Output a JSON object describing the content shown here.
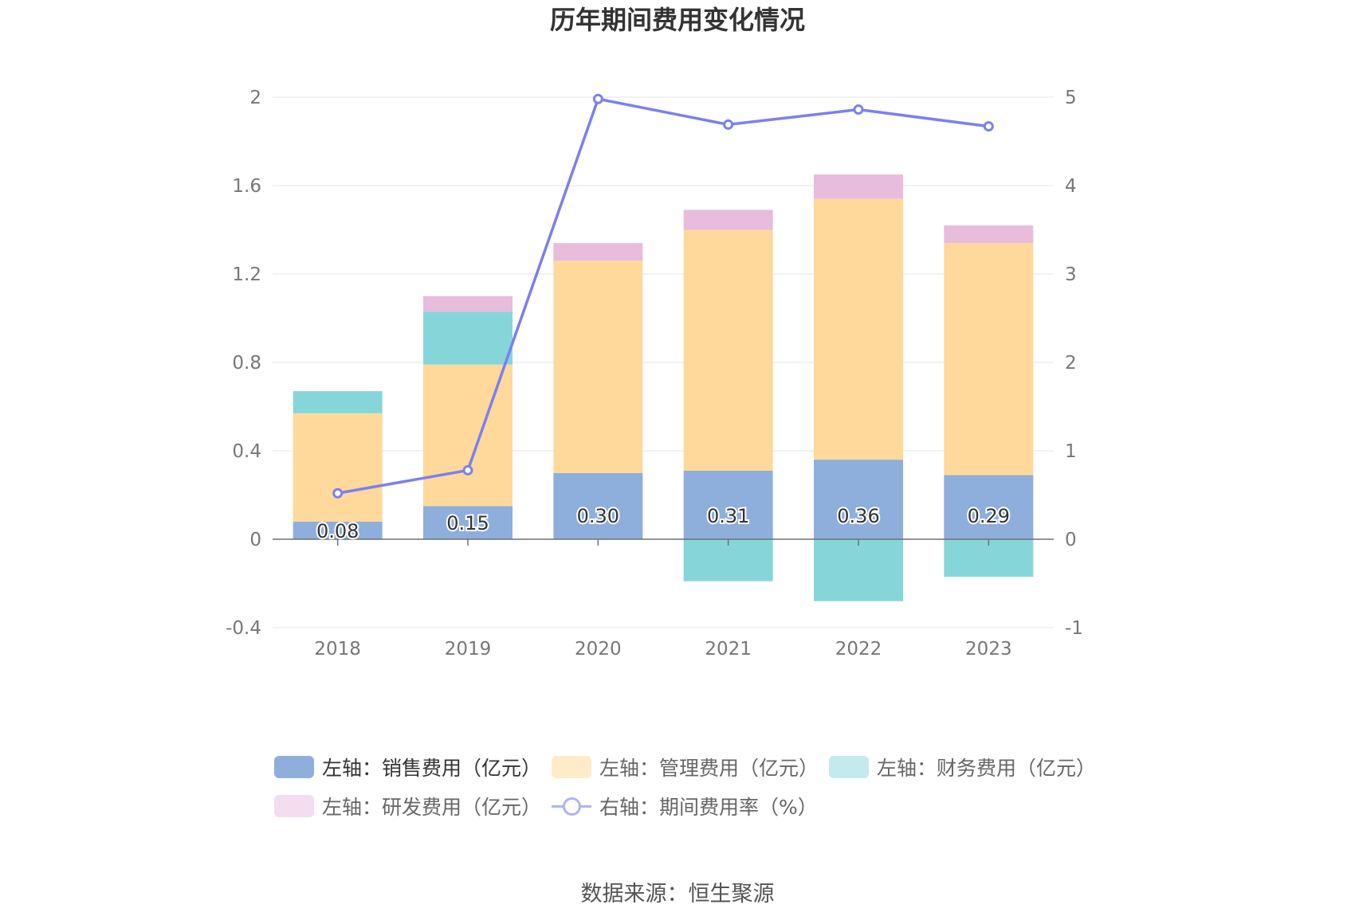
{
  "chart_data": {
    "type": "bar",
    "title": "历年期间费用变化情况",
    "categories": [
      "2018",
      "2019",
      "2020",
      "2021",
      "2022",
      "2023"
    ],
    "y_left": {
      "ylim": [
        -0.4,
        2
      ],
      "ticks": [
        "2",
        "1.6",
        "1.2",
        "0.8",
        "0.4",
        "0",
        "-0.4"
      ]
    },
    "y_right": {
      "ylim": [
        -1,
        5
      ],
      "ticks": [
        "5",
        "4",
        "3",
        "2",
        "1",
        "0",
        "-1"
      ]
    },
    "series": [
      {
        "name": "左轴：销售费用（亿元）",
        "axis": "left",
        "color": "#8eaedc",
        "values": [
          0.08,
          0.15,
          0.3,
          0.31,
          0.36,
          0.29
        ],
        "labels": [
          "0.08",
          "0.15",
          "0.30",
          "0.31",
          "0.36",
          "0.29"
        ]
      },
      {
        "name": "左轴：管理费用（亿元）",
        "axis": "left",
        "color": "#ffd99b",
        "values": [
          0.49,
          0.64,
          0.96,
          1.09,
          1.18,
          1.05
        ]
      },
      {
        "name": "左轴：财务费用（亿元）",
        "axis": "left",
        "color": "#86d6d9",
        "values": [
          0.1,
          0.24,
          0.0,
          -0.19,
          -0.28,
          -0.17
        ]
      },
      {
        "name": "左轴：研发费用（亿元）",
        "axis": "left",
        "color": "#e8bcdc",
        "values": [
          0.0,
          0.07,
          0.08,
          0.09,
          0.11,
          0.08
        ]
      },
      {
        "name": "右轴：期间费用率（%）",
        "axis": "right",
        "type": "line",
        "color": "#7b80ef",
        "values": [
          0.52,
          0.78,
          4.98,
          4.69,
          4.86,
          4.67
        ]
      }
    ],
    "grid": true,
    "legend": "bottom"
  },
  "source": "数据来源：恒生聚源"
}
